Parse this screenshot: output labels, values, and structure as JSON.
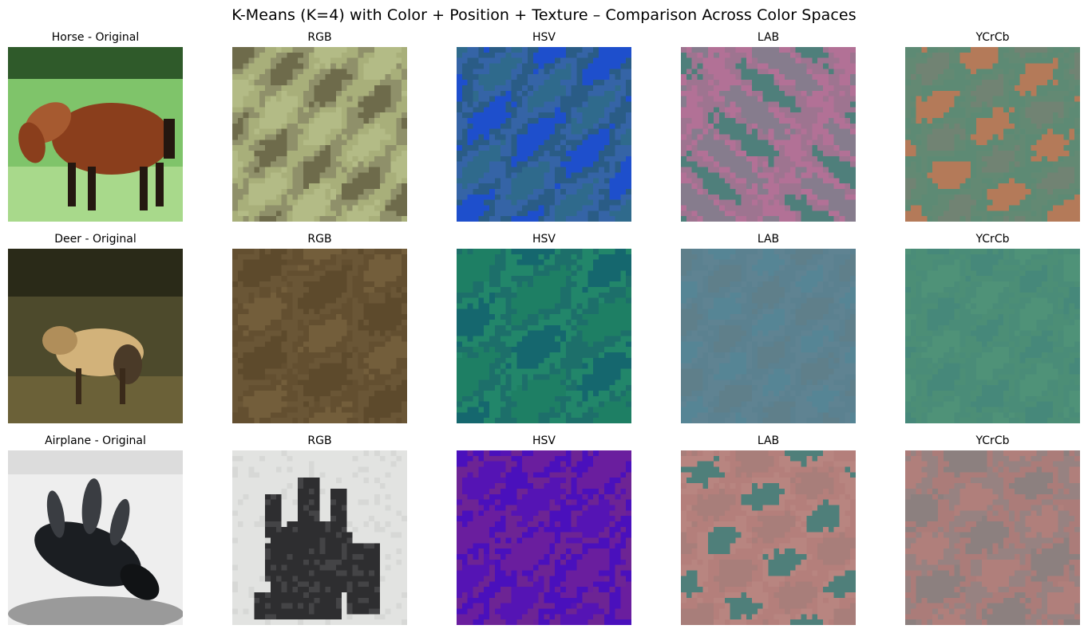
{
  "figure": {
    "title": "K-Means (K=4) with Color + Position + Texture – Comparison Across Color Spaces"
  },
  "chart_data": {
    "type": "image-grid",
    "title": "K-Means (K=4) with Color + Position + Texture – Comparison Across Color Spaces",
    "rows": [
      {
        "name": "Horse",
        "panels": [
          {
            "title": "Horse - Original",
            "kind": "original",
            "subject": "horse",
            "colors": {
              "bg": "#7fc46a",
              "bg2": "#a8d98b",
              "top": "#2f5a2a",
              "body": "#8a3e1c",
              "body2": "#a65a30",
              "dark": "#241710"
            }
          },
          {
            "title": "RGB",
            "kind": "clusters",
            "seed": 11,
            "diag": 1,
            "colors": [
              "#a8af7a",
              "#b3bb86",
              "#6e6b4b",
              "#8f906a"
            ]
          },
          {
            "title": "HSV",
            "kind": "clusters",
            "seed": 12,
            "diag": 1,
            "colors": [
              "#2a5c86",
              "#1e4fcc",
              "#2f6a8c",
              "#3564a6"
            ]
          },
          {
            "title": "LAB",
            "kind": "clusters",
            "seed": 13,
            "diag": 0,
            "colors": [
              "#b27196",
              "#867c8d",
              "#4f7f7b",
              "#9e7490"
            ]
          },
          {
            "title": "YCrCb",
            "kind": "clusters",
            "seed": 14,
            "diag": 1,
            "colors": [
              "#5d8a74",
              "#b47a59",
              "#718373",
              "#638973"
            ]
          }
        ]
      },
      {
        "name": "Deer",
        "panels": [
          {
            "title": "Deer - Original",
            "kind": "original",
            "subject": "deer",
            "colors": {
              "bg": "#4d4a2c",
              "bg2": "#6b6138",
              "top": "#2a2a18",
              "body": "#d2b27a",
              "body2": "#b08e5a",
              "dark": "#3a2a1a"
            }
          },
          {
            "title": "RGB",
            "kind": "clusters",
            "seed": 21,
            "diag": 1,
            "colors": [
              "#6a5636",
              "#5d4a2c",
              "#735e3b",
              "#634f30"
            ]
          },
          {
            "title": "HSV",
            "kind": "clusters",
            "seed": 22,
            "diag": 1,
            "colors": [
              "#1d6f6a",
              "#1e7f64",
              "#15676e",
              "#22866a"
            ]
          },
          {
            "title": "LAB",
            "kind": "clusters",
            "seed": 23,
            "diag": 1,
            "colors": [
              "#5b8190",
              "#5f7f8a",
              "#568595",
              "#5f8392"
            ]
          },
          {
            "title": "YCrCb",
            "kind": "clusters",
            "seed": 24,
            "diag": 1,
            "colors": [
              "#4a8c78",
              "#4f9278",
              "#46887a",
              "#4c8e76"
            ]
          }
        ]
      },
      {
        "name": "Airplane",
        "panels": [
          {
            "title": "Airplane - Original",
            "kind": "original",
            "subject": "airplane",
            "colors": {
              "bg": "#eeeeee",
              "bg2": "#f6f6f6",
              "top": "#dcdcdc",
              "body": "#1b1e22",
              "body2": "#3a3d42",
              "dark": "#111315"
            }
          },
          {
            "title": "RGB",
            "kind": "clusters",
            "seed": 31,
            "diag": 0,
            "shape": "plane",
            "colors": [
              "#e2e3e1",
              "#d7d8d6",
              "#2e2e30",
              "#444446"
            ]
          },
          {
            "title": "HSV",
            "kind": "clusters",
            "seed": 32,
            "diag": 1,
            "colors": [
              "#4a10bc",
              "#6a1e9e",
              "#5514b4",
              "#6d2494"
            ]
          },
          {
            "title": "LAB",
            "kind": "clusters",
            "seed": 33,
            "diag": 1,
            "colors": [
              "#b47f7b",
              "#a87e7a",
              "#4f7f7a",
              "#b88580"
            ]
          },
          {
            "title": "YCrCb",
            "kind": "clusters",
            "seed": 34,
            "diag": 1,
            "colors": [
              "#ab7c79",
              "#8c807f",
              "#b07f7b",
              "#978281"
            ]
          }
        ]
      }
    ]
  }
}
